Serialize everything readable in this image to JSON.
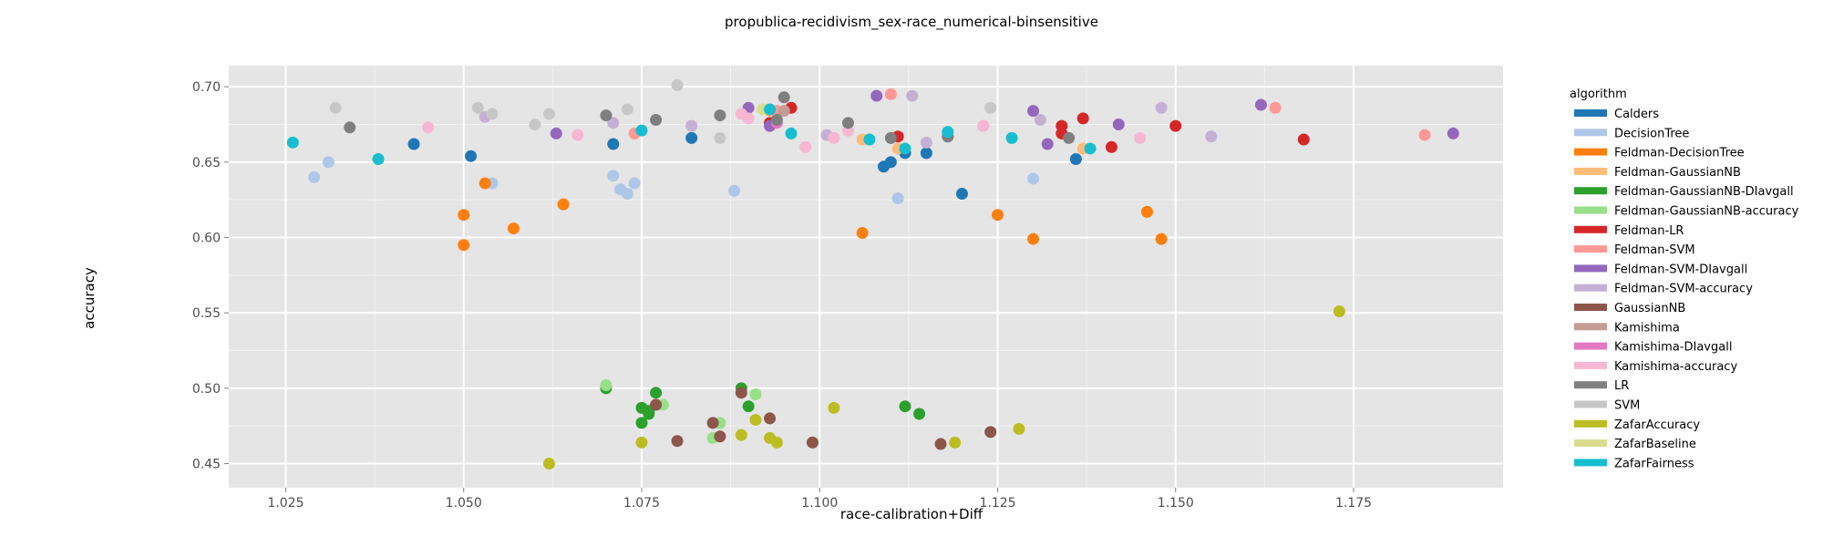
{
  "chart_data": {
    "type": "scatter",
    "title": "propublica-recidivism_sex-race_numerical-binsensitive",
    "xlabel": "race-calibration+Diff",
    "ylabel": "accuracy",
    "xlim": [
      1.017,
      1.196
    ],
    "ylim": [
      0.434,
      0.714
    ],
    "xticks": [
      1.025,
      1.05,
      1.075,
      1.1,
      1.125,
      1.15,
      1.175
    ],
    "xtick_labels": [
      "1.025",
      "1.050",
      "1.075",
      "1.100",
      "1.125",
      "1.150",
      "1.175"
    ],
    "yticks": [
      0.45,
      0.5,
      0.55,
      0.6,
      0.65,
      0.7
    ],
    "ytick_labels": [
      "0.45",
      "0.50",
      "0.55",
      "0.60",
      "0.65",
      "0.70"
    ],
    "grid": true,
    "legend": {
      "title": "algorithm",
      "placement": "right"
    },
    "series": [
      {
        "name": "Calders",
        "color": "#1f77b4",
        "points": [
          [
            1.043,
            0.662
          ],
          [
            1.051,
            0.654
          ],
          [
            1.071,
            0.662
          ],
          [
            1.082,
            0.666
          ],
          [
            1.109,
            0.647
          ],
          [
            1.11,
            0.65
          ],
          [
            1.112,
            0.656
          ],
          [
            1.115,
            0.656
          ],
          [
            1.12,
            0.629
          ],
          [
            1.136,
            0.652
          ]
        ]
      },
      {
        "name": "DecisionTree",
        "color": "#aec7e8",
        "points": [
          [
            1.029,
            0.64
          ],
          [
            1.031,
            0.65
          ],
          [
            1.054,
            0.636
          ],
          [
            1.071,
            0.641
          ],
          [
            1.072,
            0.632
          ],
          [
            1.073,
            0.629
          ],
          [
            1.074,
            0.636
          ],
          [
            1.088,
            0.631
          ],
          [
            1.111,
            0.626
          ],
          [
            1.13,
            0.639
          ]
        ]
      },
      {
        "name": "Feldman-DecisionTree",
        "color": "#ff7f0e",
        "points": [
          [
            1.05,
            0.595
          ],
          [
            1.05,
            0.615
          ],
          [
            1.053,
            0.636
          ],
          [
            1.057,
            0.606
          ],
          [
            1.064,
            0.622
          ],
          [
            1.106,
            0.603
          ],
          [
            1.125,
            0.615
          ],
          [
            1.13,
            0.599
          ],
          [
            1.146,
            0.617
          ],
          [
            1.148,
            0.599
          ]
        ]
      },
      {
        "name": "Feldman-GaussianNB",
        "color": "#ffbb78",
        "points": [
          [
            1.074,
            0.669
          ],
          [
            1.093,
            0.684
          ],
          [
            1.106,
            0.665
          ],
          [
            1.111,
            0.659
          ],
          [
            1.137,
            0.659
          ]
        ]
      },
      {
        "name": "Feldman-GaussianNB-DIavgall",
        "color": "#2ca02c",
        "points": [
          [
            1.07,
            0.5
          ],
          [
            1.075,
            0.487
          ],
          [
            1.075,
            0.477
          ],
          [
            1.076,
            0.483
          ],
          [
            1.077,
            0.497
          ],
          [
            1.089,
            0.5
          ],
          [
            1.09,
            0.488
          ],
          [
            1.112,
            0.488
          ],
          [
            1.114,
            0.483
          ],
          [
            1.076,
            0.485
          ]
        ]
      },
      {
        "name": "Feldman-GaussianNB-accuracy",
        "color": "#98df8a",
        "points": [
          [
            1.07,
            0.502
          ],
          [
            1.078,
            0.489
          ],
          [
            1.086,
            0.477
          ],
          [
            1.091,
            0.496
          ],
          [
            1.124,
            0.471
          ],
          [
            1.085,
            0.467
          ]
        ]
      },
      {
        "name": "Feldman-LR",
        "color": "#d62728",
        "points": [
          [
            1.093,
            0.676
          ],
          [
            1.096,
            0.686
          ],
          [
            1.111,
            0.667
          ],
          [
            1.134,
            0.674
          ],
          [
            1.134,
            0.669
          ],
          [
            1.137,
            0.679
          ],
          [
            1.141,
            0.66
          ],
          [
            1.15,
            0.674
          ],
          [
            1.168,
            0.665
          ]
        ]
      },
      {
        "name": "Feldman-SVM",
        "color": "#ff9896",
        "points": [
          [
            1.074,
            0.669
          ],
          [
            1.094,
            0.684
          ],
          [
            1.11,
            0.695
          ],
          [
            1.123,
            0.674
          ],
          [
            1.164,
            0.686
          ],
          [
            1.185,
            0.668
          ]
        ]
      },
      {
        "name": "Feldman-SVM-DIavgall",
        "color": "#9467bd",
        "points": [
          [
            1.063,
            0.669
          ],
          [
            1.09,
            0.686
          ],
          [
            1.093,
            0.674
          ],
          [
            1.108,
            0.694
          ],
          [
            1.13,
            0.684
          ],
          [
            1.132,
            0.662
          ],
          [
            1.142,
            0.675
          ],
          [
            1.162,
            0.688
          ],
          [
            1.189,
            0.669
          ]
        ]
      },
      {
        "name": "Feldman-SVM-accuracy",
        "color": "#c5b0d5",
        "points": [
          [
            1.053,
            0.68
          ],
          [
            1.071,
            0.676
          ],
          [
            1.082,
            0.674
          ],
          [
            1.101,
            0.668
          ],
          [
            1.115,
            0.663
          ],
          [
            1.113,
            0.694
          ],
          [
            1.131,
            0.678
          ],
          [
            1.148,
            0.686
          ],
          [
            1.155,
            0.667
          ]
        ]
      },
      {
        "name": "GaussianNB",
        "color": "#8c564b",
        "points": [
          [
            1.077,
            0.489
          ],
          [
            1.08,
            0.465
          ],
          [
            1.085,
            0.477
          ],
          [
            1.086,
            0.468
          ],
          [
            1.089,
            0.497
          ],
          [
            1.093,
            0.48
          ],
          [
            1.099,
            0.464
          ],
          [
            1.117,
            0.463
          ],
          [
            1.124,
            0.471
          ]
        ]
      },
      {
        "name": "Kamishima",
        "color": "#c49c94",
        "points": [
          [
            1.095,
            0.684
          ],
          [
            1.118,
            0.667
          ]
        ]
      },
      {
        "name": "Kamishima-DIavgall",
        "color": "#e377c2",
        "points": [
          [
            1.093,
            0.685
          ],
          [
            1.094,
            0.676
          ]
        ]
      },
      {
        "name": "Kamishima-accuracy",
        "color": "#f7b6d2",
        "points": [
          [
            1.045,
            0.673
          ],
          [
            1.066,
            0.668
          ],
          [
            1.089,
            0.682
          ],
          [
            1.09,
            0.679
          ],
          [
            1.098,
            0.66
          ],
          [
            1.102,
            0.666
          ],
          [
            1.104,
            0.671
          ],
          [
            1.123,
            0.674
          ],
          [
            1.145,
            0.666
          ]
        ]
      },
      {
        "name": "LR",
        "color": "#7f7f7f",
        "points": [
          [
            1.034,
            0.673
          ],
          [
            1.07,
            0.681
          ],
          [
            1.077,
            0.678
          ],
          [
            1.086,
            0.681
          ],
          [
            1.094,
            0.678
          ],
          [
            1.095,
            0.693
          ],
          [
            1.104,
            0.676
          ],
          [
            1.11,
            0.666
          ],
          [
            1.118,
            0.667
          ],
          [
            1.135,
            0.666
          ]
        ]
      },
      {
        "name": "SVM",
        "color": "#c7c7c7",
        "points": [
          [
            1.032,
            0.686
          ],
          [
            1.052,
            0.686
          ],
          [
            1.054,
            0.682
          ],
          [
            1.06,
            0.675
          ],
          [
            1.062,
            0.682
          ],
          [
            1.073,
            0.685
          ],
          [
            1.08,
            0.701
          ],
          [
            1.086,
            0.666
          ],
          [
            1.124,
            0.686
          ]
        ]
      },
      {
        "name": "ZafarAccuracy",
        "color": "#bcbd22",
        "points": [
          [
            1.062,
            0.45
          ],
          [
            1.075,
            0.464
          ],
          [
            1.089,
            0.469
          ],
          [
            1.091,
            0.479
          ],
          [
            1.093,
            0.467
          ],
          [
            1.094,
            0.464
          ],
          [
            1.102,
            0.487
          ],
          [
            1.119,
            0.464
          ],
          [
            1.128,
            0.473
          ],
          [
            1.173,
            0.551
          ]
        ]
      },
      {
        "name": "ZafarBaseline",
        "color": "#dbdb8d",
        "points": [
          [
            1.092,
            0.685
          ]
        ]
      },
      {
        "name": "ZafarFairness",
        "color": "#17becf",
        "points": [
          [
            1.026,
            0.663
          ],
          [
            1.038,
            0.652
          ],
          [
            1.075,
            0.671
          ],
          [
            1.093,
            0.685
          ],
          [
            1.096,
            0.669
          ],
          [
            1.107,
            0.665
          ],
          [
            1.112,
            0.659
          ],
          [
            1.118,
            0.67
          ],
          [
            1.127,
            0.666
          ],
          [
            1.138,
            0.659
          ]
        ]
      }
    ]
  }
}
